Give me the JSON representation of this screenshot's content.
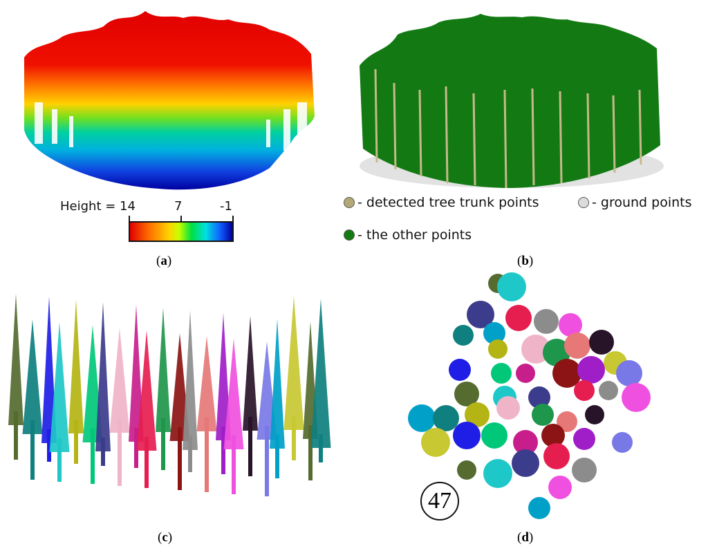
{
  "panels": {
    "a": {
      "caption_letter": "a",
      "colorbar": {
        "label": "Height = 14",
        "mid": "7",
        "min": "-1",
        "gradient": [
          "#e00000",
          "#ff6a00",
          "#ffd200",
          "#c8ff00",
          "#00e040",
          "#00e0e0",
          "#1060ff",
          "#0000a0"
        ]
      }
    },
    "b": {
      "caption_letter": "b",
      "legend": [
        {
          "label": "- detected tree trunk points",
          "color": "#b5a877"
        },
        {
          "label": "- ground points",
          "color": "#dcdcdc"
        },
        {
          "label": "- the other points",
          "color": "#137a13"
        }
      ]
    },
    "c": {
      "caption_letter": "c"
    },
    "d": {
      "caption_letter": "d",
      "tree_count": "47"
    }
  },
  "segment_colors": [
    "#556b2f",
    "#0f7f7f",
    "#1e1ee6",
    "#1ec8c8",
    "#b4b414",
    "#00c878",
    "#3c3c8c",
    "#f0b4c8",
    "#c81e8c",
    "#e61e50",
    "#1e964b",
    "#8c1414",
    "#8c8c8c",
    "#e67878",
    "#a01ec8",
    "#f050e0",
    "#281428",
    "#7878e6",
    "#00a0c8",
    "#c8c832"
  ]
}
